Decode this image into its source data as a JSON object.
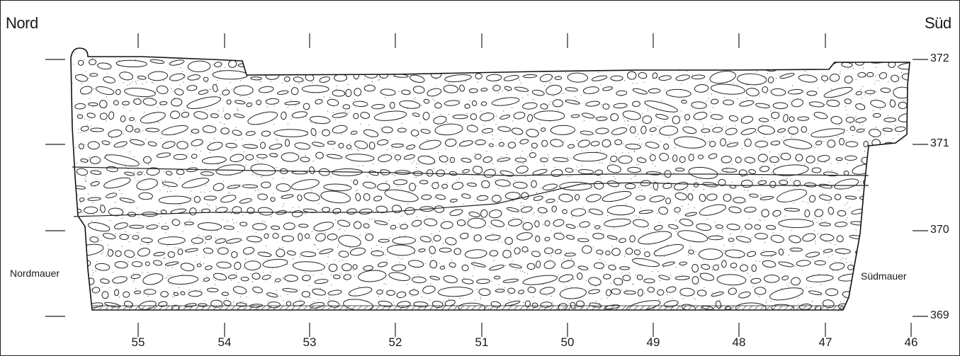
{
  "labels": {
    "north": "Nord",
    "south": "Süd",
    "north_wall": "Nordmauer",
    "south_wall": "Südmauer"
  },
  "section_numbers": [
    "55",
    "54",
    "53",
    "52",
    "51",
    "50",
    "49",
    "48",
    "47",
    "46"
  ],
  "elevations": [
    "372",
    "371",
    "370",
    "369"
  ]
}
